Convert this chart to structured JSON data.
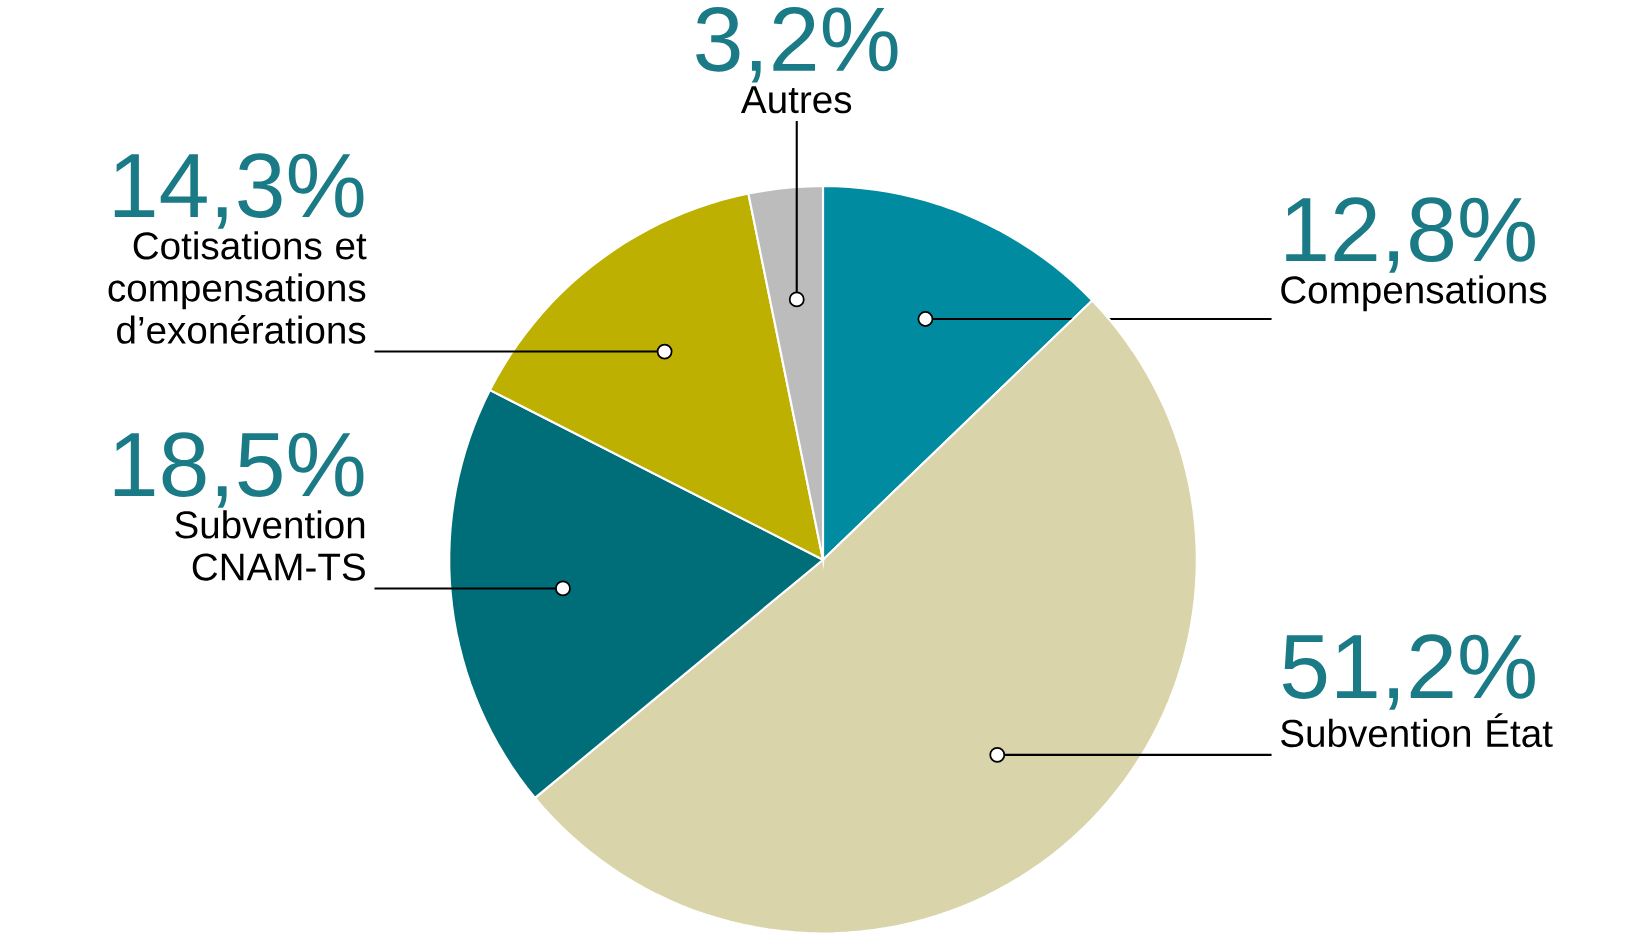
{
  "chart_data": {
    "type": "pie",
    "categories": [
      "Compensations",
      "Subvention État",
      "Subvention CNAM-TS",
      "Cotisations et compensations d’exonérations",
      "Autres"
    ],
    "values": [
      12.8,
      51.2,
      18.5,
      14.3,
      3.2
    ],
    "colors": [
      "#008ba0",
      "#d9d4a9",
      "#006e78",
      "#bdb000",
      "#bcbcbc"
    ],
    "value_labels": [
      "12,8%",
      "51,2%",
      "18,5%",
      "14,3%",
      "3,2%"
    ]
  }
}
